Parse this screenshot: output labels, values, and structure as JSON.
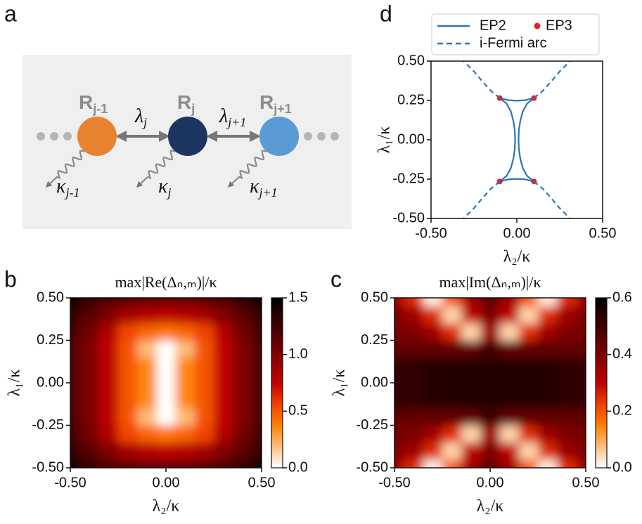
{
  "diagram": {
    "panel_label": "a",
    "nodes": [
      {
        "label": "R",
        "sub": "j-1"
      },
      {
        "label": "R",
        "sub": "j"
      },
      {
        "label": "R",
        "sub": "j+1"
      }
    ],
    "couplings": [
      {
        "label": "λ",
        "sub": "j"
      },
      {
        "label": "λ",
        "sub": "j+1"
      }
    ],
    "losses": [
      {
        "label": "κ",
        "sub": "j-1"
      },
      {
        "label": "κ",
        "sub": "j"
      },
      {
        "label": "κ",
        "sub": "j+1"
      }
    ]
  },
  "chart_data": [
    {
      "type": "heatmap",
      "panel_label": "b",
      "title": "max|Re(Δₙ,ₘ)|/κ",
      "x_label": "λ₂/κ",
      "y_label": "λ₁/κ",
      "x": [
        -0.5,
        -0.4,
        -0.3,
        -0.2,
        -0.1,
        0,
        0.1,
        0.2,
        0.3,
        0.4,
        0.5
      ],
      "y": [
        -0.5,
        -0.4,
        -0.3,
        -0.2,
        -0.1,
        0,
        0.1,
        0.2,
        0.3,
        0.4,
        0.5
      ],
      "values": [
        [
          1.45,
          1.3,
          1.2,
          1.15,
          1.1,
          1.1,
          1.1,
          1.15,
          1.2,
          1.3,
          1.45
        ],
        [
          1.3,
          1.15,
          1.0,
          0.85,
          0.8,
          0.75,
          0.8,
          0.85,
          1.0,
          1.15,
          1.3
        ],
        [
          1.25,
          1.05,
          0.8,
          0.55,
          0.45,
          0.4,
          0.45,
          0.55,
          0.8,
          1.05,
          1.25
        ],
        [
          1.2,
          1.0,
          0.75,
          0.5,
          0.2,
          0,
          0.2,
          0.5,
          0.75,
          1.0,
          1.2
        ],
        [
          1.2,
          1.0,
          0.75,
          0.5,
          0.35,
          0,
          0.35,
          0.5,
          0.75,
          1.0,
          1.2
        ],
        [
          1.2,
          1.0,
          0.75,
          0.5,
          0.35,
          0,
          0.35,
          0.5,
          0.75,
          1.0,
          1.2
        ],
        [
          1.2,
          1.0,
          0.75,
          0.5,
          0.35,
          0,
          0.35,
          0.5,
          0.75,
          1.0,
          1.2
        ],
        [
          1.2,
          1.0,
          0.75,
          0.5,
          0.2,
          0,
          0.2,
          0.5,
          0.75,
          1.0,
          1.2
        ],
        [
          1.25,
          1.05,
          0.8,
          0.55,
          0.45,
          0.4,
          0.45,
          0.55,
          0.8,
          1.05,
          1.25
        ],
        [
          1.3,
          1.15,
          1.0,
          0.85,
          0.8,
          0.75,
          0.8,
          0.85,
          1.0,
          1.15,
          1.3
        ],
        [
          1.45,
          1.3,
          1.2,
          1.15,
          1.1,
          1.1,
          1.1,
          1.15,
          1.2,
          1.3,
          1.45
        ]
      ],
      "colormap": [
        "#ffffff",
        "#ffbf80",
        "#ff8000",
        "#ef4000",
        "#bf0000",
        "#8f0000",
        "#600000",
        "#300000",
        "#000000"
      ],
      "xlim": [
        -0.5,
        0.5
      ],
      "ylim": [
        -0.5,
        0.5
      ],
      "zlim": [
        0,
        1.5
      ],
      "xticks": [
        {
          "value": -0.5,
          "label": "-0.50"
        },
        {
          "value": 0,
          "label": "0.00"
        },
        {
          "value": 0.5,
          "label": "0.50"
        }
      ],
      "yticks": [
        {
          "value": -0.5,
          "label": "-0.50"
        },
        -0.25,
        {
          "value": 0,
          "label": "0.00"
        },
        0.25,
        {
          "value": 0.5,
          "label": "0.50"
        }
      ],
      "zticks": [
        {
          "value": 0,
          "label": "0.0"
        },
        0.5,
        {
          "value": 1,
          "label": "1.0"
        },
        1.5
      ]
    },
    {
      "type": "heatmap",
      "panel_label": "c",
      "title": "max|Im(Δₙ,ₘ)|/κ",
      "x_label": "λ₂/κ",
      "y_label": "λ₁/κ",
      "x": [
        -0.5,
        -0.4,
        -0.3,
        -0.2,
        -0.1,
        0,
        0.1,
        0.2,
        0.3,
        0.4,
        0.5
      ],
      "y": [
        -0.5,
        -0.4,
        -0.3,
        -0.2,
        -0.1,
        0,
        0.1,
        0.2,
        0.3,
        0.4,
        0.5
      ],
      "values": [
        [
          0.35,
          0.25,
          0.02,
          0.2,
          0.35,
          0.45,
          0.35,
          0.2,
          0.02,
          0.25,
          0.35
        ],
        [
          0.4,
          0.35,
          0.25,
          0.05,
          0.3,
          0.4,
          0.3,
          0.05,
          0.25,
          0.35,
          0.4
        ],
        [
          0.42,
          0.4,
          0.35,
          0.25,
          0.05,
          0.35,
          0.05,
          0.25,
          0.35,
          0.4,
          0.42
        ],
        [
          0.45,
          0.45,
          0.45,
          0.45,
          0.45,
          0.5,
          0.45,
          0.45,
          0.45,
          0.45,
          0.45
        ],
        [
          0.52,
          0.53,
          0.54,
          0.55,
          0.55,
          0.55,
          0.55,
          0.55,
          0.54,
          0.53,
          0.52
        ],
        [
          0.52,
          0.53,
          0.54,
          0.55,
          0.55,
          0.55,
          0.55,
          0.55,
          0.54,
          0.53,
          0.52
        ],
        [
          0.52,
          0.53,
          0.54,
          0.55,
          0.55,
          0.55,
          0.55,
          0.55,
          0.54,
          0.53,
          0.52
        ],
        [
          0.45,
          0.45,
          0.45,
          0.45,
          0.45,
          0.5,
          0.45,
          0.45,
          0.45,
          0.45,
          0.45
        ],
        [
          0.42,
          0.4,
          0.35,
          0.25,
          0.05,
          0.35,
          0.05,
          0.25,
          0.35,
          0.4,
          0.42
        ],
        [
          0.4,
          0.35,
          0.25,
          0.05,
          0.3,
          0.4,
          0.3,
          0.05,
          0.25,
          0.35,
          0.4
        ],
        [
          0.35,
          0.25,
          0.02,
          0.2,
          0.35,
          0.45,
          0.35,
          0.2,
          0.02,
          0.25,
          0.35
        ]
      ],
      "colormap": [
        "#ffffff",
        "#ffbf80",
        "#ff8000",
        "#ef4000",
        "#bf0000",
        "#8f0000",
        "#600000",
        "#300000",
        "#000000"
      ],
      "xlim": [
        -0.5,
        0.5
      ],
      "ylim": [
        -0.5,
        0.5
      ],
      "zlim": [
        0,
        0.6
      ],
      "xticks": [
        {
          "value": -0.5,
          "label": "-0.50"
        },
        {
          "value": 0,
          "label": "0.00"
        },
        {
          "value": 0.5,
          "label": "0.50"
        }
      ],
      "yticks": [
        {
          "value": -0.5,
          "label": "-0.50"
        },
        -0.25,
        {
          "value": 0,
          "label": "0.00"
        },
        0.25,
        {
          "value": 0.5,
          "label": "0.50"
        }
      ],
      "zticks": [
        {
          "value": 0,
          "label": "0.0"
        },
        0.2,
        0.4,
        0.6
      ]
    },
    {
      "type": "line",
      "panel_label": "d",
      "x_label": "λ₂/κ",
      "y_label": "λ₁/κ",
      "legend": "top",
      "xlim": [
        -0.5,
        0.5
      ],
      "ylim": [
        -0.5,
        0.5
      ],
      "xticks": [
        {
          "value": -0.5,
          "label": "-0.50"
        },
        {
          "value": 0,
          "label": "0.00"
        },
        {
          "value": 0.5,
          "label": "0.50"
        }
      ],
      "yticks": [
        {
          "value": -0.5,
          "label": "-0.50"
        },
        -0.25,
        {
          "value": 0,
          "label": "0.00"
        },
        0.25,
        {
          "value": 0.5,
          "label": "0.50"
        }
      ],
      "series": [
        {
          "name": "EP2",
          "color": "#2f74b5",
          "style": "solid",
          "x": [
            -0.1,
            -0.06,
            -0.035,
            -0.02,
            -0.012,
            -0.01,
            -0.012,
            -0.02,
            -0.035,
            -0.06,
            -0.1,
            null,
            0.1,
            0.06,
            0.035,
            0.02,
            0.012,
            0.01,
            0.012,
            0.02,
            0.035,
            0.06,
            0.1,
            null,
            -0.1,
            -0.05,
            0,
            0.05,
            0.1,
            null,
            -0.1,
            -0.05,
            0,
            0.05,
            0.1
          ],
          "values": [
            0.265,
            0.23,
            0.18,
            0.12,
            0.06,
            0,
            -0.06,
            -0.12,
            -0.18,
            -0.23,
            -0.265,
            null,
            0.265,
            0.23,
            0.18,
            0.12,
            0.06,
            0,
            -0.06,
            -0.12,
            -0.18,
            -0.23,
            -0.265,
            null,
            0.265,
            0.252,
            0.248,
            0.252,
            0.265,
            null,
            -0.265,
            -0.252,
            -0.248,
            -0.252,
            -0.265
          ]
        },
        {
          "name": "EP3",
          "color": "#d62728",
          "style": "marker",
          "x": [
            -0.1,
            0.1,
            -0.1,
            0.1
          ],
          "values": [
            0.265,
            0.265,
            -0.265,
            -0.265
          ]
        },
        {
          "name": "i-Fermi arc",
          "color": "#2f74b5",
          "style": "dashed",
          "x": [
            -0.1,
            -0.15,
            -0.2,
            -0.25,
            -0.31,
            null,
            0.1,
            0.15,
            0.2,
            0.25,
            0.31,
            null,
            -0.1,
            -0.15,
            -0.2,
            -0.25,
            -0.31,
            null,
            0.1,
            0.15,
            0.2,
            0.25,
            0.31
          ],
          "values": [
            0.265,
            0.31,
            0.37,
            0.435,
            0.5,
            null,
            0.265,
            0.31,
            0.37,
            0.435,
            0.5,
            null,
            -0.265,
            -0.31,
            -0.37,
            -0.435,
            -0.5,
            null,
            -0.265,
            -0.31,
            -0.37,
            -0.435,
            -0.5
          ]
        }
      ]
    }
  ]
}
